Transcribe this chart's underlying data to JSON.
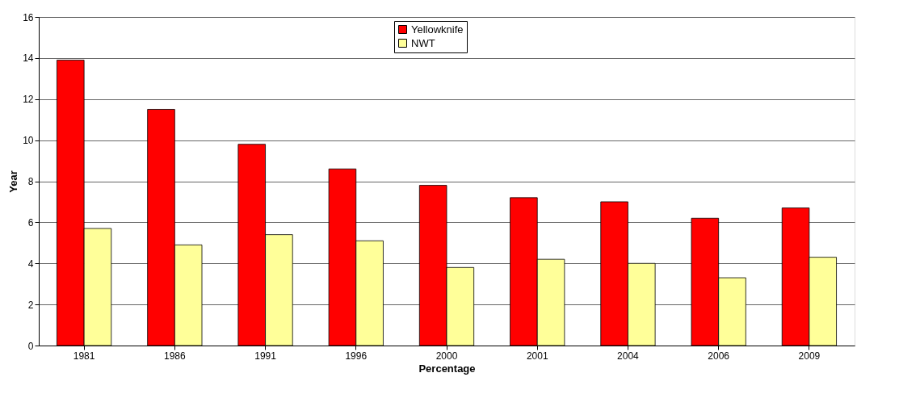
{
  "chart_data": {
    "type": "bar",
    "xlabel": "Percentage",
    "ylabel": "Year",
    "categories": [
      "1981",
      "1986",
      "1991",
      "1996",
      "2000",
      "2001",
      "2004",
      "2006",
      "2009"
    ],
    "series": [
      {
        "name": "Yellowknife",
        "color": "#ff0000",
        "values": [
          13.9,
          11.5,
          9.8,
          8.6,
          7.8,
          7.2,
          7.0,
          6.2,
          6.7
        ]
      },
      {
        "name": "NWT",
        "color": "#ffff99",
        "values": [
          5.7,
          4.9,
          5.4,
          5.1,
          3.8,
          4.2,
          4.0,
          3.3,
          4.3
        ]
      }
    ],
    "ylim": [
      0,
      16
    ],
    "yticks": [
      0,
      2,
      4,
      6,
      8,
      10,
      12,
      14,
      16
    ],
    "grid": "y",
    "legend": "top"
  }
}
